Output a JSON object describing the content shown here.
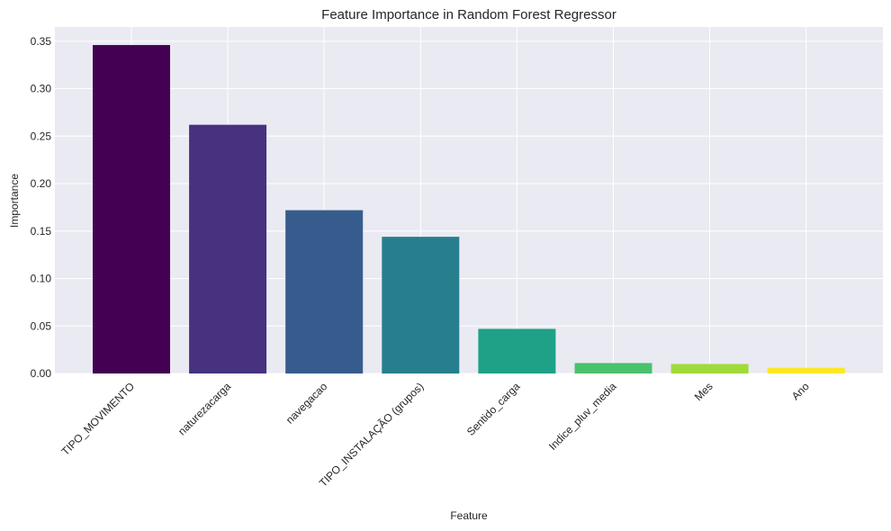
{
  "chart_data": {
    "type": "bar",
    "title": "Feature Importance in Random Forest Regressor",
    "xlabel": "Feature",
    "ylabel": "Importance",
    "categories": [
      "TIPO_MOVIMENTO",
      "naturezacarga",
      "navegacao",
      "TIPO_INSTALAÇÃO (grupos)",
      "Sentido_carga",
      "Indice_pluv_media",
      "Mes",
      "Ano"
    ],
    "values": [
      0.346,
      0.262,
      0.172,
      0.144,
      0.047,
      0.011,
      0.01,
      0.006
    ],
    "colors": [
      "#440154",
      "#46327e",
      "#365c8d",
      "#277f8e",
      "#1fa187",
      "#4ac16d",
      "#a0da39",
      "#fde725"
    ],
    "ylim": [
      0,
      0.365
    ],
    "yticks": [
      0.0,
      0.05,
      0.1,
      0.15,
      0.2,
      0.25,
      0.3,
      0.35
    ],
    "ytick_labels": [
      "0.00",
      "0.05",
      "0.10",
      "0.15",
      "0.20",
      "0.25",
      "0.30",
      "0.35"
    ],
    "grid": true,
    "background": "#eaeaf2"
  }
}
